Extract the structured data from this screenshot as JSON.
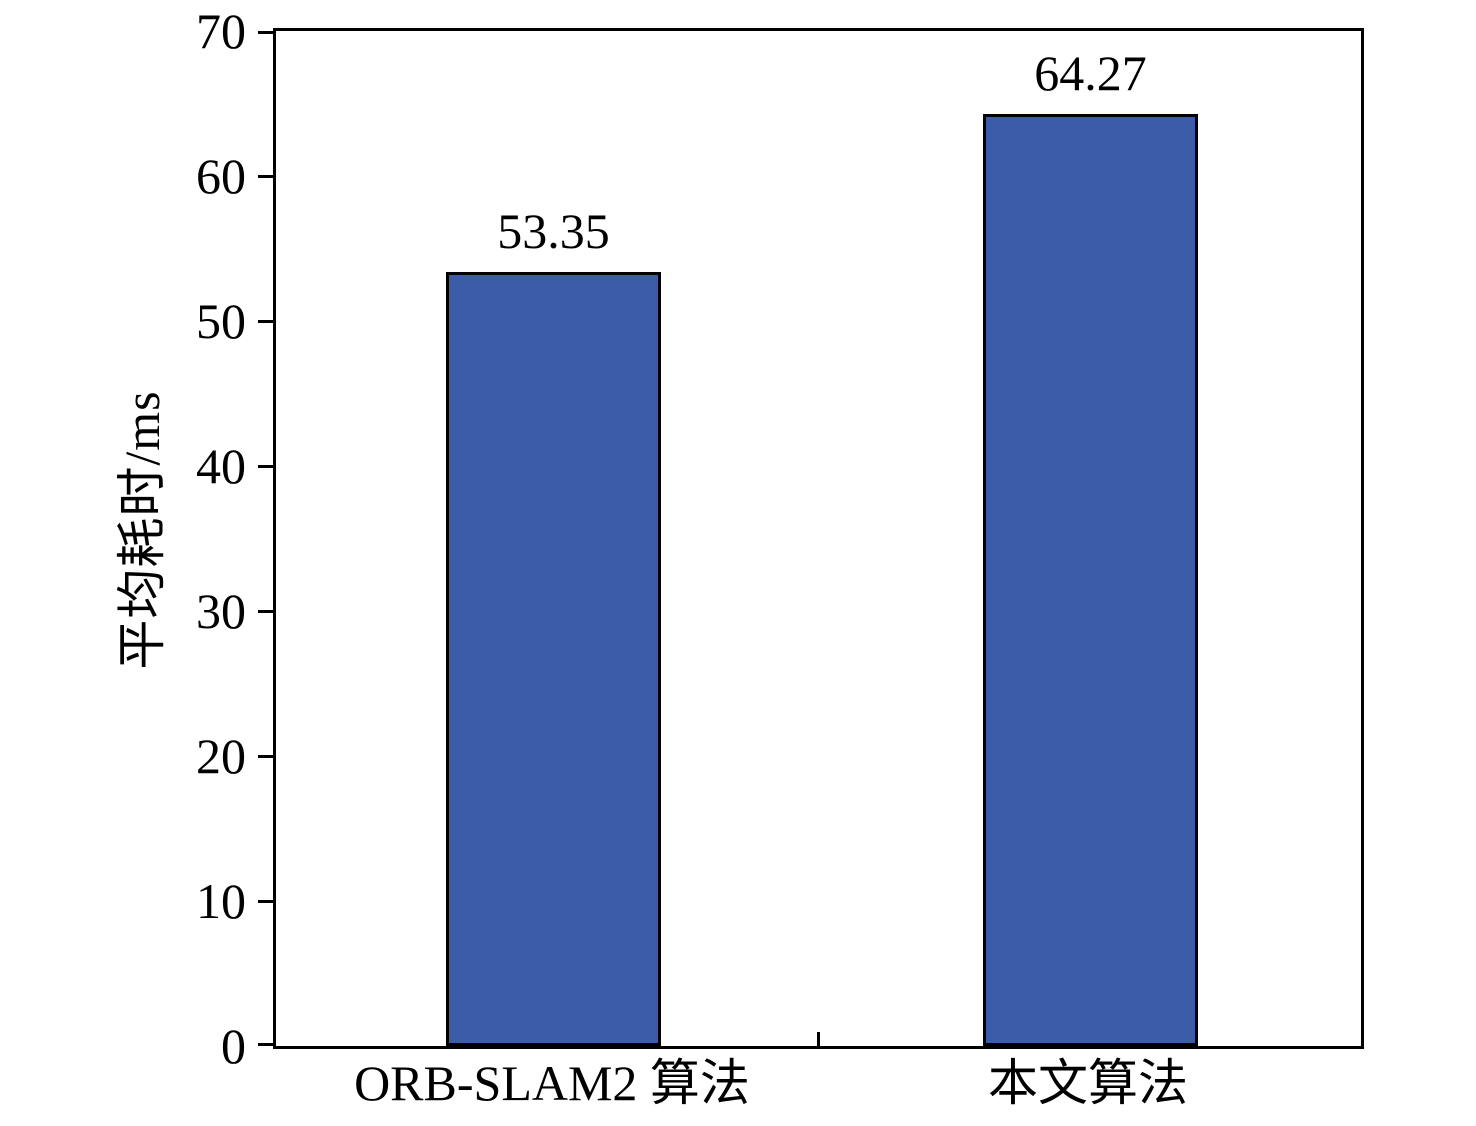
{
  "chart_data": {
    "type": "bar",
    "categories": [
      "ORB-SLAM2 算法",
      "本文算法"
    ],
    "values": [
      53.35,
      64.27
    ],
    "value_labels": [
      "53.35",
      "64.27"
    ],
    "title": "",
    "xlabel": "",
    "ylabel": "平均耗时/ms",
    "ylim": [
      0,
      70
    ],
    "yticks": [
      0,
      10,
      20,
      30,
      40,
      50,
      60,
      70
    ],
    "bar_color": "#3A5CA9",
    "bar_border_color": "#000000",
    "axis_color": "#000000",
    "background": "#FFFFFF",
    "grid": false,
    "legend": "none"
  }
}
